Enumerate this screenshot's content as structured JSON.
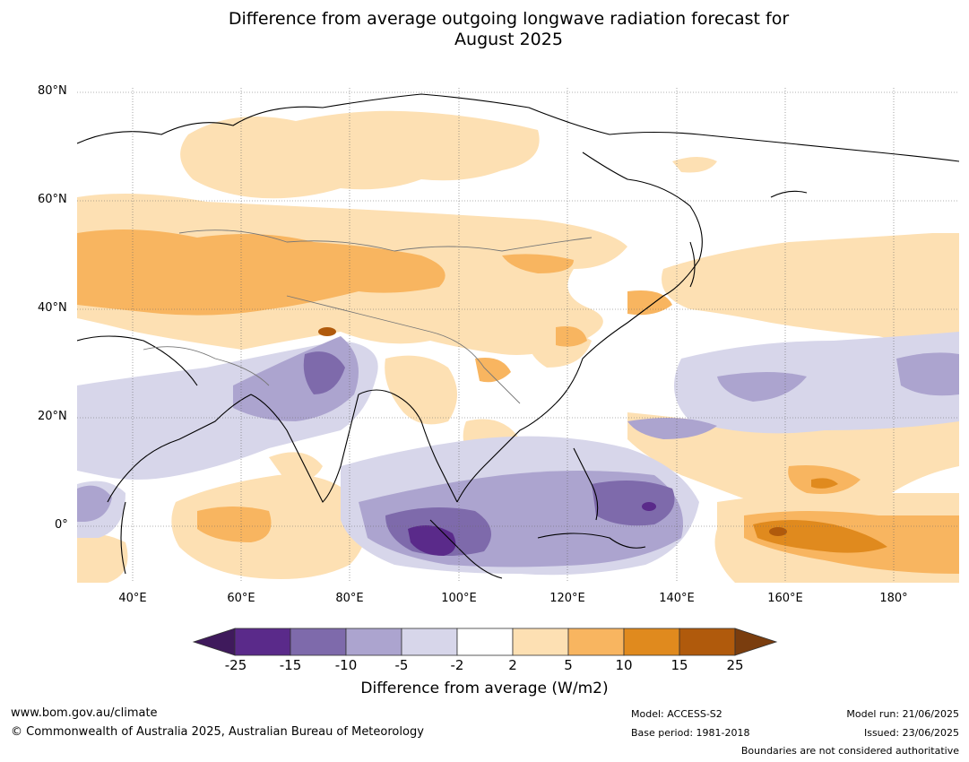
{
  "title_line1": "Difference from average outgoing longwave radiation forecast for",
  "title_line2": "August 2025",
  "lat_labels": [
    "80°N",
    "60°N",
    "40°N",
    "20°N",
    "0°"
  ],
  "lon_labels": [
    "40°E",
    "60°E",
    "80°E",
    "100°E",
    "120°E",
    "140°E",
    "160°E",
    "180°"
  ],
  "colorbar": {
    "levels": [
      "-25",
      "-15",
      "-10",
      "-5",
      "-2",
      "2",
      "5",
      "10",
      "15",
      "25"
    ],
    "colors": [
      "#3f1a5c",
      "#5a2a8a",
      "#7e6aab",
      "#aca4cf",
      "#d7d6ea",
      "#ffffff",
      "#fde0b3",
      "#f8b560",
      "#e08a1e",
      "#b05a0c",
      "#7a3d0e"
    ],
    "title": "Difference from average (W/m2)"
  },
  "footer": {
    "url": "www.bom.gov.au/climate",
    "copyright": "© Commonwealth of Australia 2025, Australian Bureau of Meteorology",
    "model": "Model: ACCESS-S2",
    "base_period": "Base period: 1981-2018",
    "model_run": "Model run: 21/06/2025",
    "issued": "Issued: 23/06/2025",
    "boundaries_note": "Boundaries are not considered authoritative"
  }
}
